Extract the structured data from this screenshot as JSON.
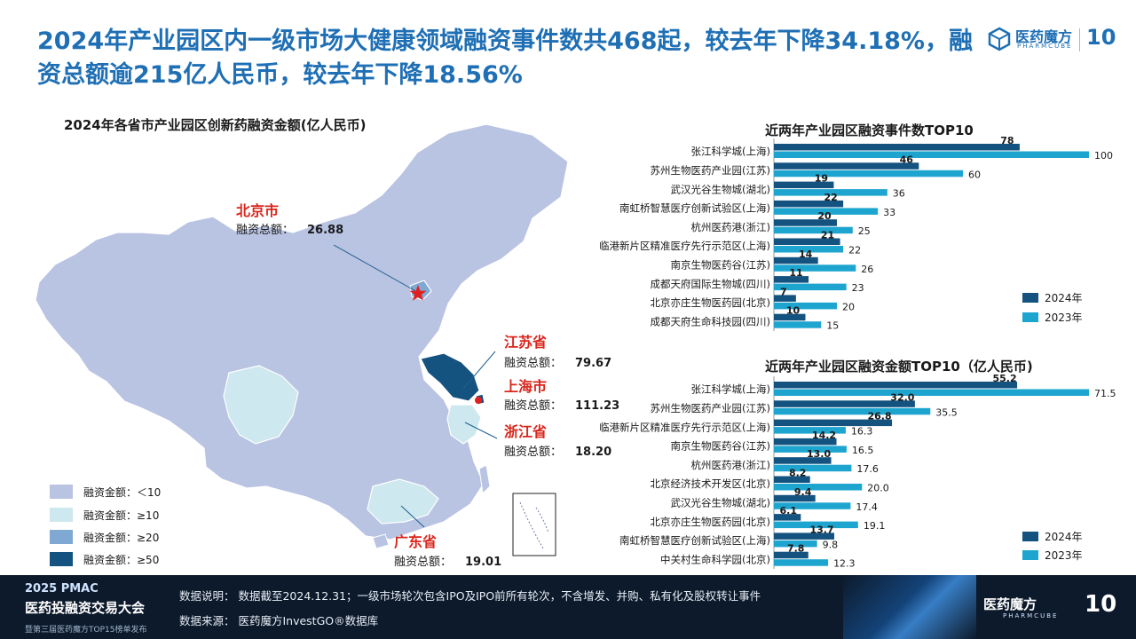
{
  "headline": "2024年产业园区内一级市场大健康领域融资事件数共468起，较去年下降34.18%，融资总额逾215亿人民币，较去年下降18.56%",
  "logo": {
    "name": "医药魔方",
    "sub": "PHARMCUBE",
    "anniv": "10"
  },
  "colors": {
    "accent": "#1f6fb5",
    "series_2024": "#14527f",
    "series_2023": "#1ea5cf"
  },
  "map": {
    "title": "2024年各省市产业园区创新药融资金额(亿人民币)",
    "callouts": [
      {
        "region": "北京市",
        "label": "融资总额：",
        "value": "26.88"
      },
      {
        "region": "江苏省",
        "label": "融资总额：",
        "value": "79.67"
      },
      {
        "region": "上海市",
        "label": "融资总额：",
        "value": "111.23"
      },
      {
        "region": "浙江省",
        "label": "融资总额：",
        "value": "18.20"
      },
      {
        "region": "广东省",
        "label": "融资总额：",
        "value": "19.01"
      }
    ],
    "legend": [
      {
        "label": "融资金额：＜10",
        "color": "#b9c3e2"
      },
      {
        "label": "融资金额：≥10",
        "color": "#cde8ee"
      },
      {
        "label": "融资金额：≥20",
        "color": "#7fa8d3"
      },
      {
        "label": "融资金额：≥50",
        "color": "#14527f"
      }
    ]
  },
  "chart_data": [
    {
      "type": "bar",
      "orientation": "horizontal",
      "title": "近两年产业园区融资事件数TOP10",
      "categories": [
        "张江科学城(上海)",
        "苏州生物医药产业园(江苏)",
        "武汉光谷生物城(湖北)",
        "南虹桥智慧医疗创新试验区(上海)",
        "杭州医药港(浙江)",
        "临港新片区精准医疗先行示范区(上海)",
        "南京生物医药谷(江苏)",
        "成都天府国际生物城(四川)",
        "北京亦庄生物医药园(北京)",
        "成都天府生命科技园(四川)"
      ],
      "series": [
        {
          "name": "2024年",
          "values": [
            78,
            46,
            19,
            22,
            20,
            21,
            14,
            11,
            7,
            10
          ]
        },
        {
          "name": "2023年",
          "values": [
            100,
            60,
            36,
            33,
            25,
            22,
            26,
            23,
            20,
            15
          ]
        }
      ],
      "value_labels": {
        "s2024": [
          "78",
          "46",
          "19",
          "22",
          "20",
          "21",
          "14",
          "11",
          "7",
          "10"
        ],
        "s2023": [
          "100",
          "60",
          "36",
          "33",
          "25",
          "22",
          "26",
          "23",
          "20",
          "15"
        ]
      },
      "xlim": [
        0,
        100
      ],
      "legend": "bottom-right"
    },
    {
      "type": "bar",
      "orientation": "horizontal",
      "title": "近两年产业园区融资金额TOP10（亿人民币)",
      "categories": [
        "张江科学城(上海)",
        "苏州生物医药产业园(江苏)",
        "临港新片区精准医疗先行示范区(上海)",
        "南京生物医药谷(江苏)",
        "杭州医药港(浙江)",
        "北京经济技术开发区(北京)",
        "武汉光谷生物城(湖北)",
        "北京亦庄生物医药园(北京)",
        "南虹桥智慧医疗创新试验区(上海)",
        "中关村生命科学园(北京)"
      ],
      "series": [
        {
          "name": "2024年",
          "values": [
            55.2,
            32.0,
            26.8,
            14.2,
            13.0,
            8.2,
            9.4,
            6.1,
            13.7,
            7.8
          ]
        },
        {
          "name": "2023年",
          "values": [
            71.5,
            35.5,
            16.3,
            16.5,
            17.6,
            20.0,
            17.4,
            19.1,
            9.8,
            12.3
          ]
        }
      ],
      "value_labels": {
        "s2024": [
          "55.2",
          "32.0",
          "26.8",
          "14.2",
          "13.0",
          "8.2",
          "9.4",
          "6.1",
          "13.7",
          "7.8"
        ],
        "s2023": [
          "71.5",
          "35.5",
          "16.3",
          "16.5",
          "17.6",
          "20.0",
          "17.4",
          "19.1",
          "9.8",
          "12.3"
        ]
      },
      "xlim": [
        0,
        71.5
      ],
      "legend": "bottom-right"
    }
  ],
  "footer": {
    "brand_line1": "2025 PMAC",
    "brand_line2": "医药投融资交易大会",
    "brand_line3": "暨第三届医药魔方TOP15榜单发布",
    "note": "数据说明：  数据截至2024.12.31；一级市场轮次包含IPO及IPO前所有轮次，不含增发、并购、私有化及股权转让事件",
    "source": "数据来源：  医药魔方InvestGO®数据库"
  }
}
